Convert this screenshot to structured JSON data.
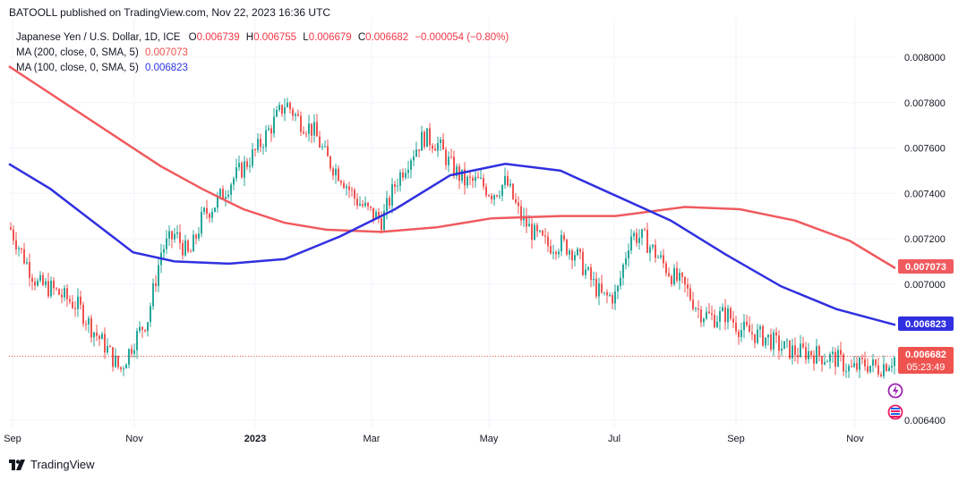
{
  "publisher": "BATOOLL published on TradingView.com, Nov 22, 2023 16:36 UTC",
  "legend": {
    "symbol": "Japanese Yen / U.S. Dollar, 1D, ICE",
    "o_label": "O",
    "o_value": "0.006739",
    "h_label": "H",
    "h_value": "0.006755",
    "l_label": "L",
    "l_value": "0.006679",
    "c_label": "C",
    "c_value": "0.006682",
    "change": "−0.000054 (−0.80%)",
    "ma200_label": "MA (200, close, 0, SMA, 5)",
    "ma200_value": "0.007073",
    "ma100_label": "MA (100, close, 0, SMA, 5)",
    "ma100_value": "0.006823"
  },
  "branding": "TradingView",
  "badges": {
    "ma200": "0.007073",
    "ma100": "0.006823",
    "last_price": "0.006682",
    "countdown": "05:23:49"
  },
  "colors": {
    "up": "#26a69a",
    "down": "#ef5350",
    "ma200": "#f05a5e",
    "ma100": "#3030e0",
    "grid": "#f0f3fa"
  },
  "chart_data": {
    "type": "candlestick",
    "x_ticks": [
      "Sep",
      "Nov",
      "2023",
      "Mar",
      "May",
      "Jul",
      "Sep",
      "Nov"
    ],
    "y_ticks": [
      "0.008000",
      "0.007800",
      "0.007600",
      "0.007400",
      "0.007200",
      "0.007000",
      "0.006400"
    ],
    "ylim": [
      0.00638,
      0.00812
    ],
    "last_close": 0.006682,
    "price_path": [
      [
        "2022-08-29",
        0.00725
      ],
      [
        "2022-09-05",
        0.00712
      ],
      [
        "2022-09-12",
        0.007
      ],
      [
        "2022-09-19",
        0.00698
      ],
      [
        "2022-09-26",
        0.00694
      ],
      [
        "2022-10-03",
        0.0069
      ],
      [
        "2022-10-10",
        0.0068
      ],
      [
        "2022-10-17",
        0.00672
      ],
      [
        "2022-10-24",
        0.00662
      ],
      [
        "2022-10-31",
        0.00675
      ],
      [
        "2022-11-07",
        0.00685
      ],
      [
        "2022-11-14",
        0.00715
      ],
      [
        "2022-11-21",
        0.00722
      ],
      [
        "2022-11-28",
        0.00712
      ],
      [
        "2022-12-05",
        0.0073
      ],
      [
        "2022-12-12",
        0.00736
      ],
      [
        "2022-12-19",
        0.00745
      ],
      [
        "2022-12-26",
        0.00752
      ],
      [
        "2023-01-02",
        0.0076
      ],
      [
        "2023-01-09",
        0.0077
      ],
      [
        "2023-01-16",
        0.0078
      ],
      [
        "2023-01-23",
        0.00772
      ],
      [
        "2023-01-30",
        0.00768
      ],
      [
        "2023-02-06",
        0.00755
      ],
      [
        "2023-02-13",
        0.00748
      ],
      [
        "2023-02-20",
        0.00738
      ],
      [
        "2023-02-27",
        0.00732
      ],
      [
        "2023-03-06",
        0.00728
      ],
      [
        "2023-03-13",
        0.00745
      ],
      [
        "2023-03-20",
        0.00756
      ],
      [
        "2023-03-27",
        0.00765
      ],
      [
        "2023-04-03",
        0.00762
      ],
      [
        "2023-04-10",
        0.00752
      ],
      [
        "2023-04-17",
        0.00745
      ],
      [
        "2023-04-24",
        0.00745
      ],
      [
        "2023-05-01",
        0.0074
      ],
      [
        "2023-05-08",
        0.00745
      ],
      [
        "2023-05-15",
        0.0073
      ],
      [
        "2023-05-22",
        0.00722
      ],
      [
        "2023-05-29",
        0.00717
      ],
      [
        "2023-06-05",
        0.00718
      ],
      [
        "2023-06-12",
        0.00714
      ],
      [
        "2023-06-19",
        0.00703
      ],
      [
        "2023-06-26",
        0.00694
      ],
      [
        "2023-07-03",
        0.00695
      ],
      [
        "2023-07-10",
        0.00722
      ],
      [
        "2023-07-17",
        0.0072
      ],
      [
        "2023-07-24",
        0.00712
      ],
      [
        "2023-07-31",
        0.00704
      ],
      [
        "2023-08-07",
        0.00698
      ],
      [
        "2023-08-14",
        0.00688
      ],
      [
        "2023-08-21",
        0.00685
      ],
      [
        "2023-08-28",
        0.00687
      ],
      [
        "2023-09-04",
        0.0068
      ],
      [
        "2023-09-11",
        0.00678
      ],
      [
        "2023-09-18",
        0.00676
      ],
      [
        "2023-09-25",
        0.00672
      ],
      [
        "2023-10-02",
        0.0067
      ],
      [
        "2023-10-09",
        0.0067
      ],
      [
        "2023-10-16",
        0.00668
      ],
      [
        "2023-10-23",
        0.00667
      ],
      [
        "2023-10-30",
        0.00662
      ],
      [
        "2023-11-06",
        0.00665
      ],
      [
        "2023-11-13",
        0.00663
      ],
      [
        "2023-11-22",
        0.00668
      ]
    ],
    "series": [
      {
        "name": "MA (200, close, 0, SMA, 5)",
        "points": [
          [
            "2022-08-29",
            0.00796
          ],
          [
            "2022-09-12",
            0.00788
          ],
          [
            "2022-10-03",
            0.00776
          ],
          [
            "2022-10-24",
            0.00764
          ],
          [
            "2022-11-14",
            0.00752
          ],
          [
            "2022-12-05",
            0.00742
          ],
          [
            "2022-12-26",
            0.00733
          ],
          [
            "2023-01-16",
            0.00727
          ],
          [
            "2023-02-06",
            0.00724
          ],
          [
            "2023-03-06",
            0.00723
          ],
          [
            "2023-04-03",
            0.00725
          ],
          [
            "2023-05-01",
            0.00729
          ],
          [
            "2023-06-05",
            0.0073
          ],
          [
            "2023-07-03",
            0.0073
          ],
          [
            "2023-08-07",
            0.00734
          ],
          [
            "2023-09-04",
            0.00733
          ],
          [
            "2023-10-02",
            0.00728
          ],
          [
            "2023-10-30",
            0.00719
          ],
          [
            "2023-11-22",
            0.00707
          ]
        ]
      },
      {
        "name": "MA (100, close, 0, SMA, 5)",
        "points": [
          [
            "2022-08-29",
            0.00753
          ],
          [
            "2022-09-19",
            0.00742
          ],
          [
            "2022-10-10",
            0.00728
          ],
          [
            "2022-10-31",
            0.00714
          ],
          [
            "2022-11-21",
            0.0071
          ],
          [
            "2022-12-19",
            0.00709
          ],
          [
            "2023-01-16",
            0.00711
          ],
          [
            "2023-02-13",
            0.00721
          ],
          [
            "2023-03-13",
            0.00733
          ],
          [
            "2023-04-10",
            0.00748
          ],
          [
            "2023-05-08",
            0.00753
          ],
          [
            "2023-06-05",
            0.0075
          ],
          [
            "2023-07-03",
            0.00739
          ],
          [
            "2023-07-31",
            0.00728
          ],
          [
            "2023-08-28",
            0.00713
          ],
          [
            "2023-09-25",
            0.00699
          ],
          [
            "2023-10-23",
            0.00689
          ],
          [
            "2023-11-22",
            0.00682
          ]
        ]
      }
    ]
  }
}
